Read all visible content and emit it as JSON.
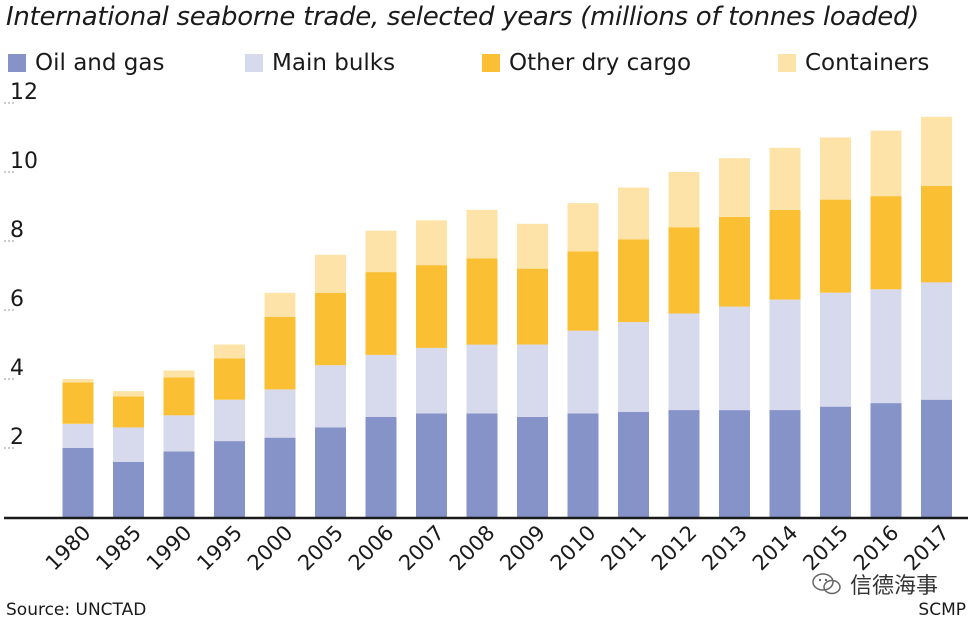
{
  "header": {
    "title": "International seaborne trade, selected years (millions of tonnes loaded)"
  },
  "footer": {
    "source": "Source: UNCTAD",
    "credit": "SCMP",
    "watermark": "信德海事"
  },
  "colors": {
    "oil": "#8593c8",
    "bulks": "#d7d9ec",
    "other": "#fbbf33",
    "containers": "#fde3a8"
  },
  "chart_data": {
    "type": "bar",
    "stacked": true,
    "title": "International seaborne trade, selected years (millions of tonnes loaded)",
    "xlabel": "",
    "ylabel": "",
    "ylim": [
      0,
      12
    ],
    "yticks": [
      2,
      4,
      6,
      8,
      10,
      12
    ],
    "categories": [
      "1980",
      "1985",
      "1990",
      "1995",
      "2000",
      "2005",
      "2006",
      "2007",
      "2008",
      "2009",
      "2010",
      "2011",
      "2012",
      "2013",
      "2014",
      "2015",
      "2016",
      "2017"
    ],
    "series": [
      {
        "name": "Oil and gas",
        "values": [
          2.0,
          1.6,
          1.9,
          2.2,
          2.3,
          2.6,
          2.9,
          3.0,
          3.0,
          2.9,
          3.0,
          3.05,
          3.1,
          3.1,
          3.1,
          3.2,
          3.3,
          3.4
        ]
      },
      {
        "name": "Main bulks",
        "values": [
          0.7,
          1.0,
          1.05,
          1.2,
          1.4,
          1.8,
          1.8,
          1.9,
          2.0,
          2.1,
          2.4,
          2.6,
          2.8,
          3.0,
          3.2,
          3.3,
          3.3,
          3.4
        ]
      },
      {
        "name": "Other dry cargo",
        "values": [
          1.2,
          0.9,
          1.1,
          1.2,
          2.1,
          2.1,
          2.4,
          2.4,
          2.5,
          2.2,
          2.3,
          2.4,
          2.5,
          2.6,
          2.6,
          2.7,
          2.7,
          2.8
        ]
      },
      {
        "name": "Containers",
        "values": [
          0.1,
          0.15,
          0.2,
          0.4,
          0.7,
          1.1,
          1.2,
          1.3,
          1.4,
          1.3,
          1.4,
          1.5,
          1.6,
          1.7,
          1.8,
          1.8,
          1.9,
          2.0
        ]
      }
    ],
    "legend": "top",
    "grid": false
  }
}
